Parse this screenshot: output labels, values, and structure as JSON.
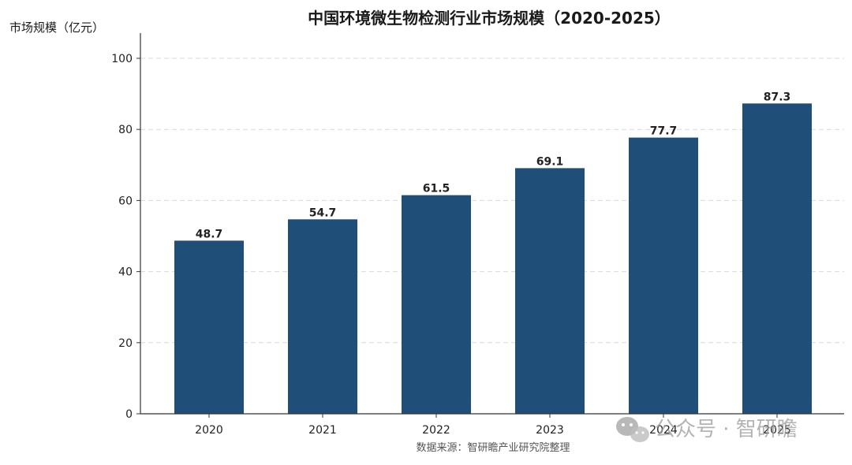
{
  "chart_data": {
    "type": "bar",
    "title": "中国环境微生物检测行业市场规模（2020-2025）",
    "ylabel": "市场规模（亿元）",
    "xlabel": "",
    "categories": [
      "2020",
      "2021",
      "2022",
      "2023",
      "2024",
      "2025"
    ],
    "values": [
      48.7,
      54.7,
      61.5,
      69.1,
      77.7,
      87.3
    ],
    "value_labels": [
      "48.7",
      "54.7",
      "61.5",
      "69.1",
      "77.7",
      "87.3"
    ],
    "ylim": [
      0,
      100
    ],
    "yticks": [
      0,
      20,
      40,
      60,
      80,
      100
    ],
    "grid": true,
    "bar_color": "#1f4e79"
  },
  "source_note": "数据来源：智研瞻产业研究院整理",
  "watermark": {
    "text": "公众号 · 智研瞻",
    "icon": "wechat-icon"
  }
}
